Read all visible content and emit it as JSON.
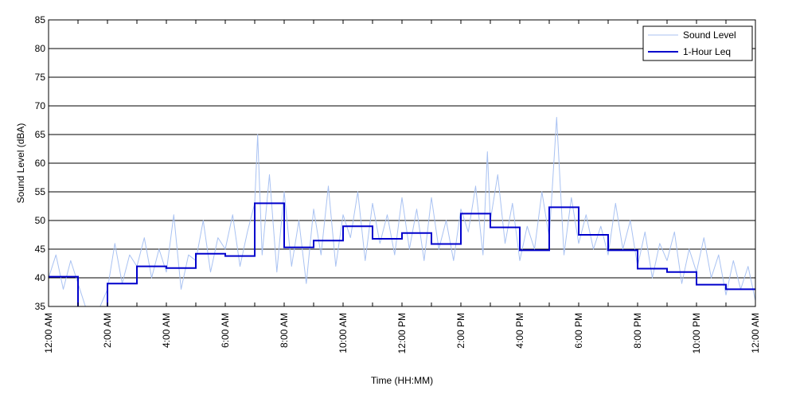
{
  "chart_data": {
    "type": "line",
    "title": "",
    "xlabel": "Time (HH:MM)",
    "ylabel": "Sound Level (dBA)",
    "ylim": [
      35,
      85
    ],
    "yticks": [
      35,
      40,
      45,
      50,
      55,
      60,
      65,
      70,
      75,
      80,
      85
    ],
    "xlim_hours": [
      0,
      24
    ],
    "xticks": [
      {
        "hour": 0,
        "label": "12:00 AM"
      },
      {
        "hour": 2,
        "label": "2:00 AM"
      },
      {
        "hour": 4,
        "label": "4:00 AM"
      },
      {
        "hour": 6,
        "label": "6:00 AM"
      },
      {
        "hour": 8,
        "label": "8:00 AM"
      },
      {
        "hour": 10,
        "label": "10:00 AM"
      },
      {
        "hour": 12,
        "label": "12:00 PM"
      },
      {
        "hour": 14,
        "label": "2:00 PM"
      },
      {
        "hour": 16,
        "label": "4:00 PM"
      },
      {
        "hour": 18,
        "label": "6:00 PM"
      },
      {
        "hour": 20,
        "label": "8:00 PM"
      },
      {
        "hour": 22,
        "label": "10:00 PM"
      },
      {
        "hour": 24,
        "label": "12:00 AM"
      }
    ],
    "grid": "horizontal",
    "legend_position": "top-right",
    "series": [
      {
        "name": "Sound Level",
        "color": "#a9c2f2",
        "x_hours": [
          0,
          0.25,
          0.5,
          0.75,
          1,
          1.25,
          1.5,
          1.75,
          2,
          2.25,
          2.5,
          2.75,
          3,
          3.25,
          3.5,
          3.75,
          4,
          4.25,
          4.5,
          4.75,
          5,
          5.25,
          5.5,
          5.75,
          6,
          6.25,
          6.5,
          6.75,
          7,
          7.1,
          7.25,
          7.5,
          7.75,
          8,
          8.25,
          8.5,
          8.75,
          9,
          9.25,
          9.5,
          9.75,
          10,
          10.25,
          10.5,
          10.75,
          11,
          11.25,
          11.5,
          11.75,
          12,
          12.25,
          12.5,
          12.75,
          13,
          13.25,
          13.5,
          13.75,
          14,
          14.25,
          14.5,
          14.75,
          14.9,
          15,
          15.25,
          15.5,
          15.75,
          16,
          16.25,
          16.5,
          16.75,
          17,
          17.25,
          17.5,
          17.75,
          18,
          18.25,
          18.5,
          18.75,
          19,
          19.25,
          19.5,
          19.75,
          20,
          20.25,
          20.5,
          20.75,
          21,
          21.25,
          21.5,
          21.75,
          22,
          22.25,
          22.5,
          22.75,
          23,
          23.25,
          23.5,
          23.75,
          24
        ],
        "values": [
          40,
          44,
          38,
          43,
          39,
          35,
          35,
          35,
          38,
          46,
          39,
          44,
          42,
          47,
          40,
          45,
          41,
          51,
          38,
          44,
          43,
          50,
          41,
          47,
          45,
          51,
          42,
          48,
          53,
          65,
          44,
          58,
          41,
          55,
          42,
          50,
          39,
          52,
          44,
          56,
          42,
          51,
          47,
          55,
          43,
          53,
          46,
          51,
          44,
          54,
          45,
          52,
          43,
          54,
          45,
          50,
          43,
          52,
          48,
          56,
          44,
          62,
          50,
          58,
          46,
          53,
          43,
          49,
          45,
          55,
          47,
          68,
          44,
          54,
          46,
          51,
          45,
          49,
          44,
          53,
          45,
          50,
          42,
          48,
          40,
          46,
          43,
          48,
          39,
          45,
          41,
          47,
          40,
          44,
          37,
          43,
          38,
          42,
          36
        ]
      },
      {
        "name": "1-Hour Leq",
        "color": "#0000cc",
        "steps": [
          {
            "start": 0,
            "end": 1,
            "value": 40.2
          },
          {
            "start": 1,
            "end": 2,
            "value": 33
          },
          {
            "start": 2,
            "end": 3,
            "value": 39
          },
          {
            "start": 3,
            "end": 4,
            "value": 42
          },
          {
            "start": 4,
            "end": 5,
            "value": 41.7
          },
          {
            "start": 5,
            "end": 6,
            "value": 44.2
          },
          {
            "start": 6,
            "end": 7,
            "value": 43.8
          },
          {
            "start": 7,
            "end": 8,
            "value": 53
          },
          {
            "start": 8,
            "end": 9,
            "value": 45.3
          },
          {
            "start": 9,
            "end": 10,
            "value": 46.5
          },
          {
            "start": 10,
            "end": 11,
            "value": 49
          },
          {
            "start": 11,
            "end": 12,
            "value": 46.8
          },
          {
            "start": 12,
            "end": 13,
            "value": 47.8
          },
          {
            "start": 13,
            "end": 14,
            "value": 45.9
          },
          {
            "start": 14,
            "end": 15,
            "value": 51.2
          },
          {
            "start": 15,
            "end": 16,
            "value": 48.8
          },
          {
            "start": 16,
            "end": 17,
            "value": 44.8
          },
          {
            "start": 17,
            "end": 18,
            "value": 52.3
          },
          {
            "start": 18,
            "end": 19,
            "value": 47.5
          },
          {
            "start": 19,
            "end": 20,
            "value": 44.8
          },
          {
            "start": 20,
            "end": 21,
            "value": 41.6
          },
          {
            "start": 21,
            "end": 22,
            "value": 41
          },
          {
            "start": 22,
            "end": 23,
            "value": 38.8
          },
          {
            "start": 23,
            "end": 24,
            "value": 38
          }
        ]
      }
    ]
  }
}
